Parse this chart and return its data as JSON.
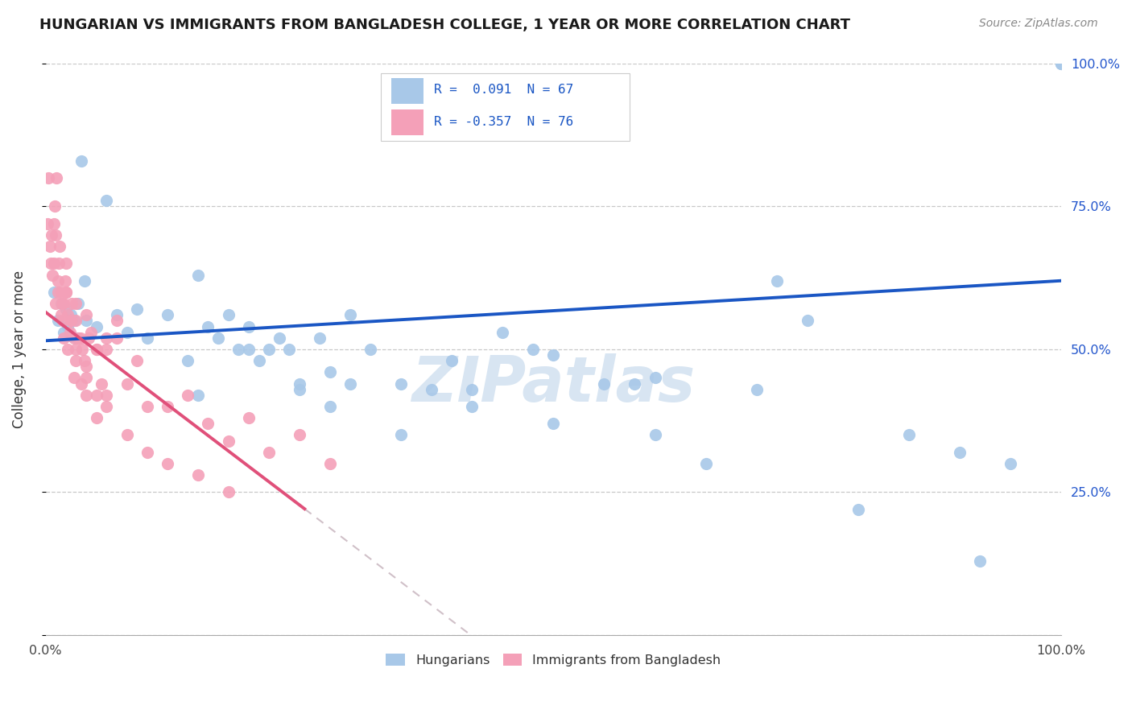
{
  "title": "HUNGARIAN VS IMMIGRANTS FROM BANGLADESH COLLEGE, 1 YEAR OR MORE CORRELATION CHART",
  "source": "Source: ZipAtlas.com",
  "ylabel": "College, 1 year or more",
  "legend_labels": [
    "Hungarians",
    "Immigrants from Bangladesh"
  ],
  "blue_R": 0.091,
  "blue_N": 67,
  "pink_R": -0.357,
  "pink_N": 76,
  "blue_color": "#a8c8e8",
  "pink_color": "#f4a0b8",
  "blue_line_color": "#1a56c4",
  "pink_line_color": "#e0507a",
  "pink_dash_color": "#d0c0c8",
  "watermark": "ZIPatlas",
  "background_color": "#ffffff",
  "grid_color": "#c8c8c8",
  "blue_intercept": 0.515,
  "blue_slope": 0.105,
  "pink_intercept": 0.565,
  "pink_slope": -1.35,
  "blue_x": [
    0.008,
    0.012,
    0.015,
    0.018,
    0.02,
    0.022,
    0.025,
    0.028,
    0.03,
    0.032,
    0.035,
    0.038,
    0.04,
    0.05,
    0.06,
    0.07,
    0.08,
    0.09,
    0.1,
    0.12,
    0.14,
    0.15,
    0.16,
    0.17,
    0.18,
    0.19,
    0.2,
    0.21,
    0.22,
    0.23,
    0.24,
    0.25,
    0.27,
    0.28,
    0.3,
    0.32,
    0.35,
    0.38,
    0.4,
    0.42,
    0.45,
    0.48,
    0.5,
    0.55,
    0.58,
    0.6,
    0.65,
    0.7,
    0.72,
    0.75,
    0.8,
    0.85,
    0.9,
    0.92,
    0.95,
    1.0,
    1.0,
    1.0,
    0.15,
    0.2,
    0.25,
    0.28,
    0.3,
    0.35,
    0.42,
    0.5,
    0.6
  ],
  "blue_y": [
    0.6,
    0.55,
    0.58,
    0.53,
    0.57,
    0.54,
    0.56,
    0.55,
    0.52,
    0.58,
    0.83,
    0.62,
    0.55,
    0.54,
    0.76,
    0.56,
    0.53,
    0.57,
    0.52,
    0.56,
    0.48,
    0.63,
    0.54,
    0.52,
    0.56,
    0.5,
    0.54,
    0.48,
    0.5,
    0.52,
    0.5,
    0.44,
    0.52,
    0.46,
    0.56,
    0.5,
    0.44,
    0.43,
    0.48,
    0.43,
    0.53,
    0.5,
    0.49,
    0.44,
    0.44,
    0.35,
    0.3,
    0.43,
    0.62,
    0.55,
    0.22,
    0.35,
    0.32,
    0.13,
    0.3,
    1.0,
    1.0,
    1.0,
    0.42,
    0.5,
    0.43,
    0.4,
    0.44,
    0.35,
    0.4,
    0.37,
    0.45
  ],
  "pink_x": [
    0.002,
    0.003,
    0.004,
    0.005,
    0.006,
    0.007,
    0.008,
    0.009,
    0.01,
    0.011,
    0.012,
    0.013,
    0.014,
    0.015,
    0.016,
    0.017,
    0.018,
    0.019,
    0.02,
    0.022,
    0.024,
    0.026,
    0.028,
    0.03,
    0.032,
    0.034,
    0.036,
    0.038,
    0.04,
    0.042,
    0.045,
    0.05,
    0.055,
    0.06,
    0.07,
    0.08,
    0.09,
    0.1,
    0.12,
    0.14,
    0.16,
    0.18,
    0.2,
    0.22,
    0.25,
    0.28,
    0.03,
    0.04,
    0.05,
    0.06,
    0.07,
    0.02,
    0.025,
    0.015,
    0.012,
    0.008,
    0.01,
    0.018,
    0.022,
    0.03,
    0.035,
    0.04,
    0.05,
    0.06,
    0.08,
    0.1,
    0.12,
    0.15,
    0.18,
    0.02,
    0.025,
    0.03,
    0.04,
    0.05,
    0.06,
    0.028
  ],
  "pink_y": [
    0.72,
    0.8,
    0.68,
    0.65,
    0.7,
    0.63,
    0.72,
    0.75,
    0.7,
    0.8,
    0.62,
    0.65,
    0.68,
    0.6,
    0.58,
    0.55,
    0.58,
    0.62,
    0.65,
    0.56,
    0.53,
    0.58,
    0.52,
    0.55,
    0.52,
    0.52,
    0.5,
    0.48,
    0.47,
    0.52,
    0.53,
    0.5,
    0.44,
    0.52,
    0.52,
    0.44,
    0.48,
    0.4,
    0.4,
    0.42,
    0.37,
    0.34,
    0.38,
    0.32,
    0.35,
    0.3,
    0.58,
    0.56,
    0.5,
    0.5,
    0.55,
    0.6,
    0.55,
    0.56,
    0.6,
    0.65,
    0.58,
    0.52,
    0.5,
    0.48,
    0.44,
    0.42,
    0.38,
    0.42,
    0.35,
    0.32,
    0.3,
    0.28,
    0.25,
    0.6,
    0.55,
    0.5,
    0.45,
    0.42,
    0.4,
    0.45
  ]
}
